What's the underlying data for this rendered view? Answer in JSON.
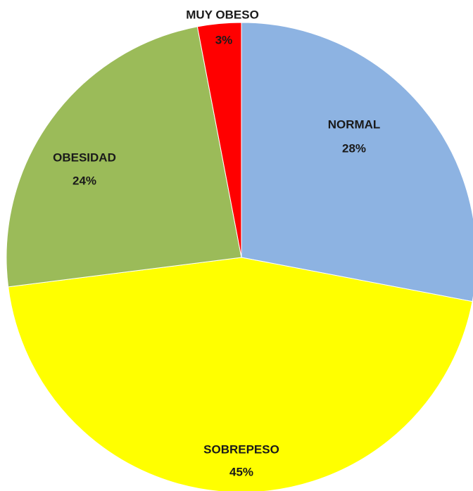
{
  "chart_data": {
    "type": "pie",
    "categories": [
      "NORMAL",
      "SOBREPESO",
      "OBESIDAD",
      "MUY OBESO"
    ],
    "values": [
      28,
      45,
      24,
      3
    ],
    "value_labels": [
      "28%",
      "45%",
      "24%",
      "3%"
    ],
    "colors": [
      "#8db3e2",
      "#ffff00",
      "#9bbb59",
      "#ff0000"
    ]
  }
}
